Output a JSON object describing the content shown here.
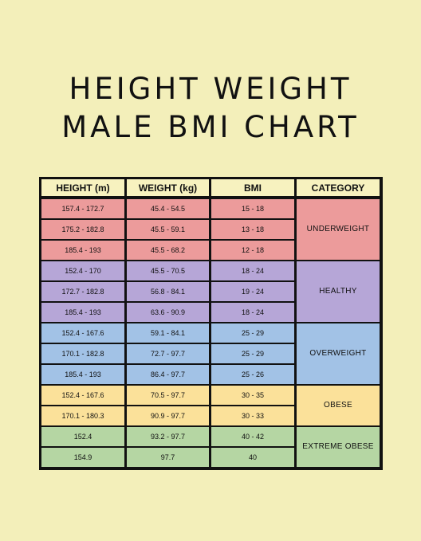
{
  "title": {
    "line1": "HEIGHT WEIGHT",
    "line2": "MALE BMI CHART"
  },
  "table": {
    "headers": [
      "HEIGHT (m)",
      "WEIGHT (kg)",
      "BMI",
      "CATEGORY"
    ],
    "rows": [
      {
        "height": "157.4 - 172.7",
        "weight": "45.4 - 54.5",
        "bmi": "15 - 18",
        "group": 0
      },
      {
        "height": "175.2 - 182.8",
        "weight": "45.5 - 59.1",
        "bmi": "13 - 18",
        "group": 0
      },
      {
        "height": "185.4 - 193",
        "weight": "45.5 - 68.2",
        "bmi": "12 - 18",
        "group": 0
      },
      {
        "height": "152.4 - 170",
        "weight": "45.5 - 70.5",
        "bmi": "18 - 24",
        "group": 1
      },
      {
        "height": "172.7 - 182.8",
        "weight": "56.8 - 84.1",
        "bmi": "19 - 24",
        "group": 1
      },
      {
        "height": "185.4 - 193",
        "weight": "63.6 - 90.9",
        "bmi": "18 - 24",
        "group": 1
      },
      {
        "height": "152.4 - 167.6",
        "weight": "59.1 - 84.1",
        "bmi": "25 - 29",
        "group": 2
      },
      {
        "height": "170.1 - 182.8",
        "weight": "72.7 - 97.7",
        "bmi": "25 - 29",
        "group": 2
      },
      {
        "height": "185.4 - 193",
        "weight": "86.4 - 97.7",
        "bmi": "25 - 26",
        "group": 2
      },
      {
        "height": "152.4 - 167.6",
        "weight": "70.5 - 97.7",
        "bmi": "30 - 35",
        "group": 3
      },
      {
        "height": "170.1 - 180.3",
        "weight": "90.9 - 97.7",
        "bmi": "30 - 33",
        "group": 3
      },
      {
        "height": "152.4",
        "weight": "93.2 - 97.7",
        "bmi": "40 - 42",
        "group": 4
      },
      {
        "height": "154.9",
        "weight": "97.7",
        "bmi": "40",
        "group": 4
      }
    ],
    "categories": [
      {
        "label": "UNDERWEIGHT",
        "color": "#ec9b9b"
      },
      {
        "label": "HEALTHY",
        "color": "#b6a6d7"
      },
      {
        "label": "OVERWEIGHT",
        "color": "#a2c2e6"
      },
      {
        "label": "OBESE",
        "color": "#fbe19a"
      },
      {
        "label": "EXTREME OBESE",
        "color": "#b5d6a3"
      }
    ]
  }
}
